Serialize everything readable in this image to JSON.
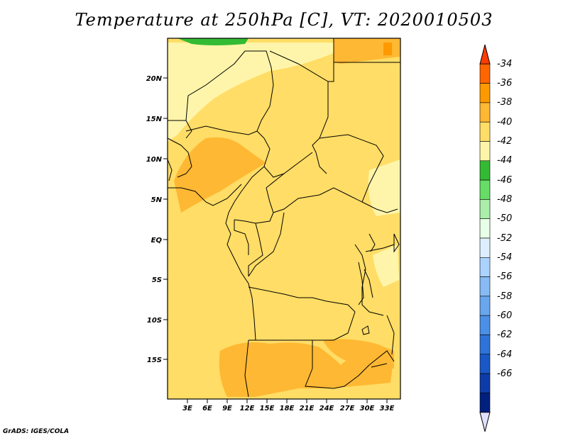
{
  "title": "Temperature at 250hPa [C], VT: 2020010503",
  "credit": "GrADS: IGES/COLA",
  "map": {
    "lat_labels": [
      "20N",
      "15N",
      "10N",
      "5N",
      "EQ",
      "5S",
      "10S",
      "15S"
    ],
    "lon_labels": [
      "3E",
      "6E",
      "9E",
      "12E",
      "15E",
      "18E",
      "21E",
      "24E",
      "27E",
      "30E",
      "33E"
    ]
  },
  "colorbar": {
    "labels": [
      "-34",
      "-36",
      "-38",
      "-40",
      "-42",
      "-44",
      "-46",
      "-48",
      "-50",
      "-52",
      "-54",
      "-56",
      "-58",
      "-60",
      "-62",
      "-64",
      "-66"
    ],
    "colors": [
      "#ff3c00",
      "#ff6600",
      "#ff9900",
      "#ffb833",
      "#ffdd66",
      "#fff5aa",
      "#33bb33",
      "#66dd66",
      "#aaeeaa",
      "#e8ffe8",
      "#ddeeff",
      "#aad4ff",
      "#88bbf5",
      "#6aa6ee",
      "#4b8fe6",
      "#2e73d9",
      "#1a57c7",
      "#0d3ba8",
      "#002080",
      "#e0e0ff"
    ]
  }
}
